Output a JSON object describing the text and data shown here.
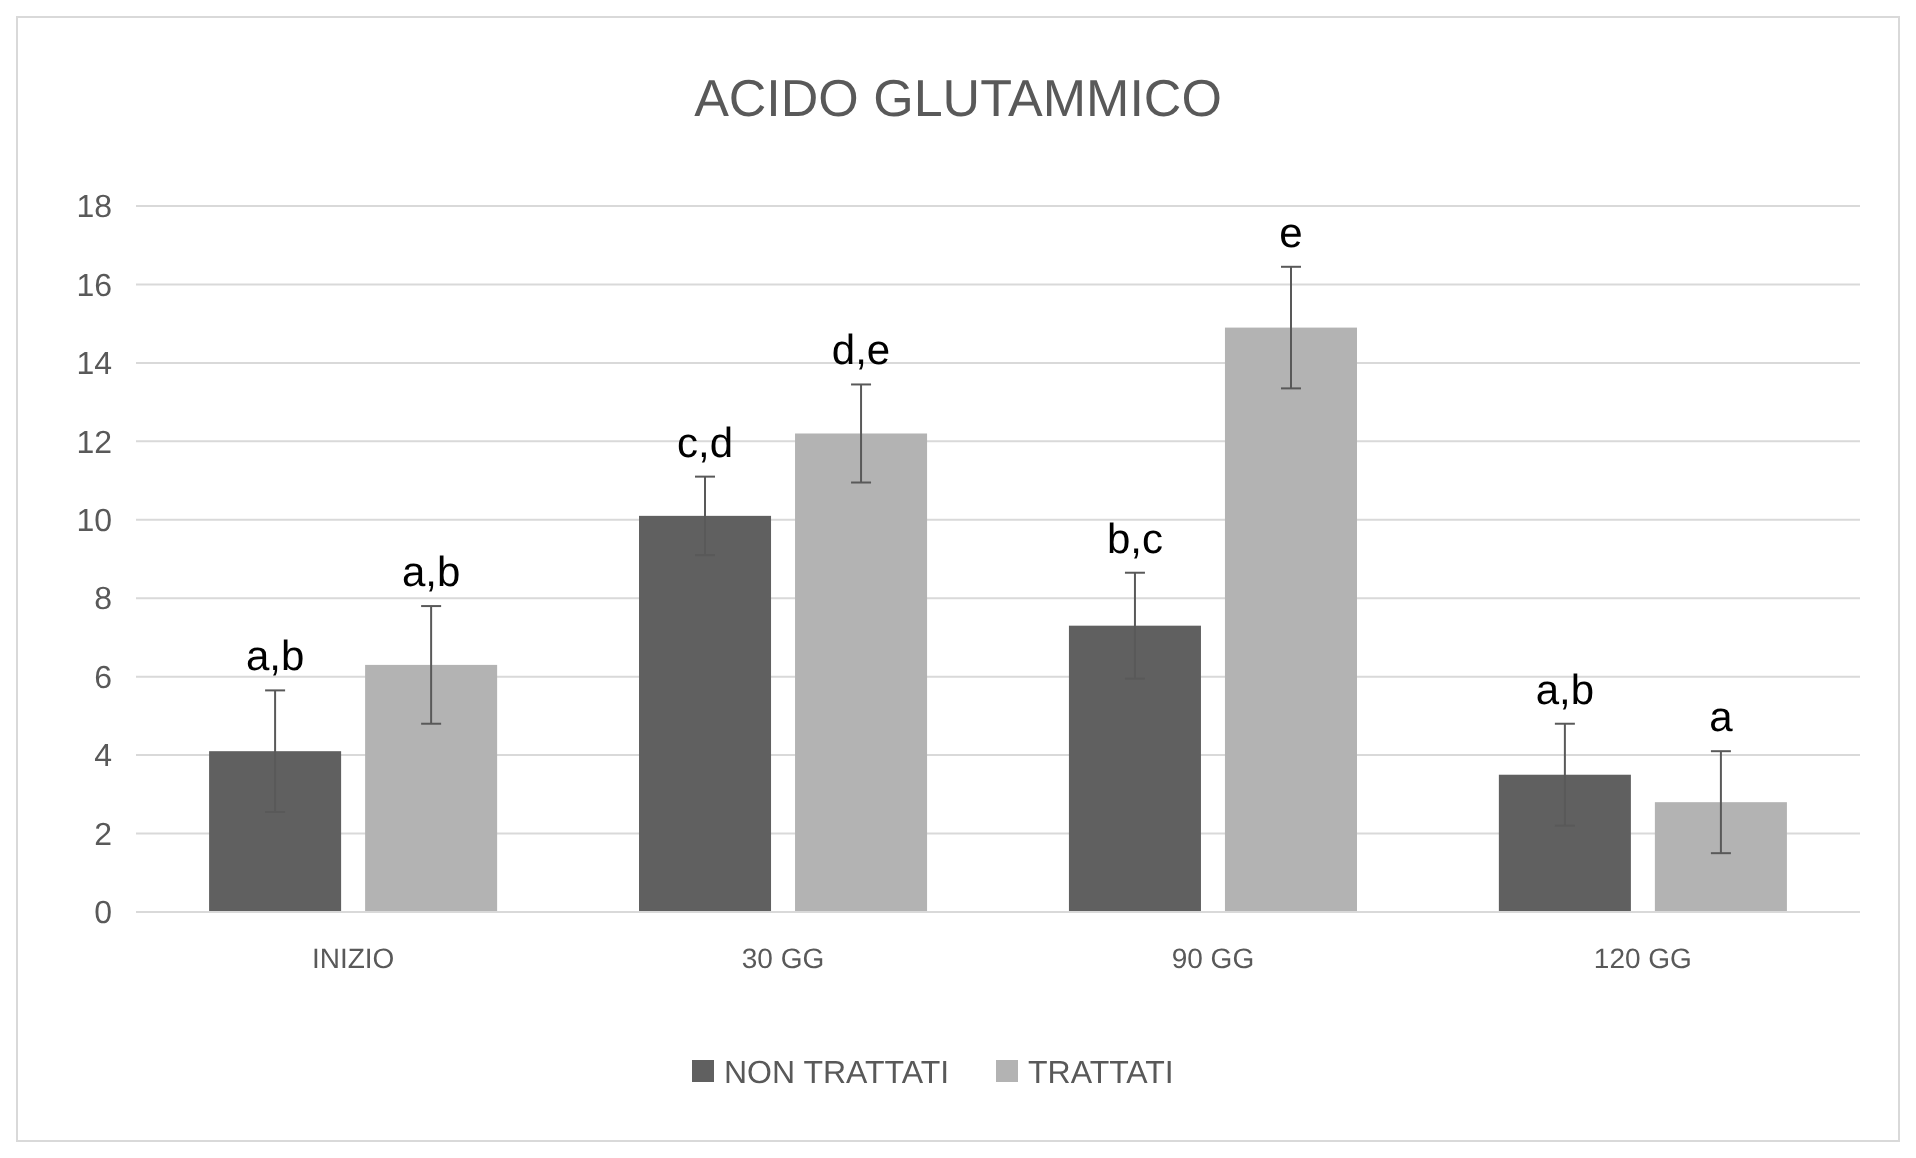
{
  "chart_data": {
    "type": "bar",
    "title": "ACIDO GLUTAMMICO",
    "categories": [
      "INIZIO",
      "30 GG",
      "90 GG",
      "120 GG"
    ],
    "series": [
      {
        "name": "NON TRATTATI",
        "color": "#606060",
        "values": [
          4.1,
          10.1,
          7.3,
          3.5
        ],
        "errors": [
          1.55,
          1.0,
          1.35,
          1.3
        ],
        "value_labels": [
          "a,b",
          "c,d",
          "b,c",
          "a,b"
        ]
      },
      {
        "name": "TRATTATI",
        "color": "#b3b3b3",
        "values": [
          6.3,
          12.2,
          14.9,
          2.8
        ],
        "errors": [
          1.5,
          1.25,
          1.55,
          1.3
        ],
        "value_labels": [
          "a,b",
          "d,e",
          "e",
          "a"
        ]
      }
    ],
    "ylim": [
      0,
      18
    ],
    "yticks": [
      0,
      2,
      4,
      6,
      8,
      10,
      12,
      14,
      16,
      18
    ],
    "grid": "y",
    "legend": "bottom"
  }
}
